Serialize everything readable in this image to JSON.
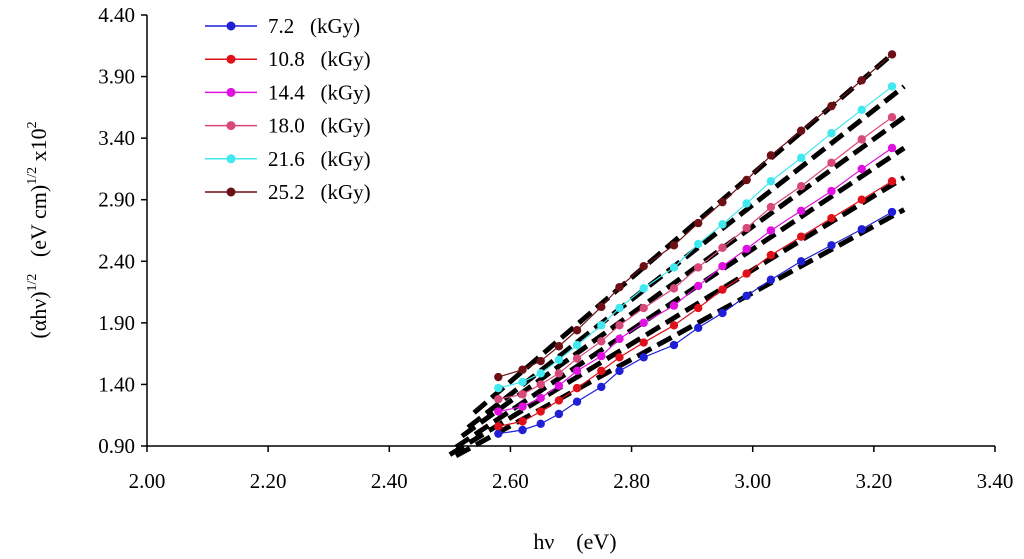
{
  "chart_data": {
    "type": "scatter",
    "title": "",
    "xlabel": "hν    (eV)",
    "ylabel_parts": {
      "base1": "(αhν)",
      "sup1": "1/2",
      "base2": "(eV cm)",
      "sup2": "1/2",
      "base3": "x10",
      "sup3": "2"
    },
    "xlim": [
      2.0,
      3.4
    ],
    "ylim": [
      0.9,
      4.4
    ],
    "x_ticks": [
      "2.00",
      "2.20",
      "2.40",
      "2.60",
      "2.80",
      "3.00",
      "3.20",
      "3.40"
    ],
    "y_ticks": [
      "0.90",
      "1.40",
      "1.90",
      "2.40",
      "2.90",
      "3.40",
      "3.90",
      "4.40"
    ],
    "grid": false,
    "legend_position": "top-left",
    "x": [
      2.58,
      2.62,
      2.65,
      2.68,
      2.71,
      2.75,
      2.78,
      2.82,
      2.87,
      2.91,
      2.95,
      2.99,
      3.03,
      3.08,
      3.13,
      3.18,
      3.23
    ],
    "series": [
      {
        "name": "7.2   (kGy)",
        "color": "#1f1fd6",
        "values": [
          1.0,
          1.03,
          1.08,
          1.16,
          1.26,
          1.38,
          1.51,
          1.62,
          1.72,
          1.86,
          1.98,
          2.12,
          2.25,
          2.4,
          2.53,
          2.66,
          2.8
        ]
      },
      {
        "name": "10.8   (kGy)",
        "color": "#e0101a",
        "values": [
          1.06,
          1.1,
          1.18,
          1.27,
          1.37,
          1.51,
          1.62,
          1.74,
          1.88,
          2.02,
          2.17,
          2.3,
          2.45,
          2.6,
          2.75,
          2.9,
          3.05
        ]
      },
      {
        "name": "14.4   (kGy)",
        "color": "#e010e0",
        "values": [
          1.18,
          1.22,
          1.29,
          1.39,
          1.51,
          1.63,
          1.77,
          1.9,
          2.04,
          2.2,
          2.36,
          2.5,
          2.65,
          2.81,
          2.97,
          3.15,
          3.32
        ]
      },
      {
        "name": "18.0   (kGy)",
        "color": "#d8487a",
        "values": [
          1.28,
          1.32,
          1.4,
          1.49,
          1.61,
          1.75,
          1.88,
          2.02,
          2.18,
          2.35,
          2.51,
          2.67,
          2.84,
          3.01,
          3.2,
          3.39,
          3.57
        ]
      },
      {
        "name": "21.6   (kGy)",
        "color": "#40e8f0",
        "values": [
          1.37,
          1.42,
          1.49,
          1.6,
          1.72,
          1.88,
          2.02,
          2.18,
          2.35,
          2.54,
          2.7,
          2.87,
          3.05,
          3.24,
          3.44,
          3.63,
          3.82
        ]
      },
      {
        "name": "25.2   (kGy)",
        "color": "#6e0f16",
        "values": [
          1.46,
          1.52,
          1.59,
          1.71,
          1.84,
          2.03,
          2.19,
          2.36,
          2.53,
          2.71,
          2.88,
          3.06,
          3.26,
          3.46,
          3.66,
          3.87,
          4.08
        ]
      }
    ],
    "fit_lines": [
      {
        "x": [
          2.51,
          3.25
        ],
        "y": [
          0.82,
          2.82
        ]
      },
      {
        "x": [
          2.5,
          3.25
        ],
        "y": [
          0.83,
          3.08
        ]
      },
      {
        "x": [
          2.51,
          3.25
        ],
        "y": [
          0.89,
          3.32
        ]
      },
      {
        "x": [
          2.52,
          3.25
        ],
        "y": [
          0.98,
          3.57
        ]
      },
      {
        "x": [
          2.53,
          3.25
        ],
        "y": [
          1.05,
          3.82
        ]
      },
      {
        "x": [
          2.54,
          3.23
        ],
        "y": [
          1.17,
          4.08
        ]
      }
    ]
  }
}
